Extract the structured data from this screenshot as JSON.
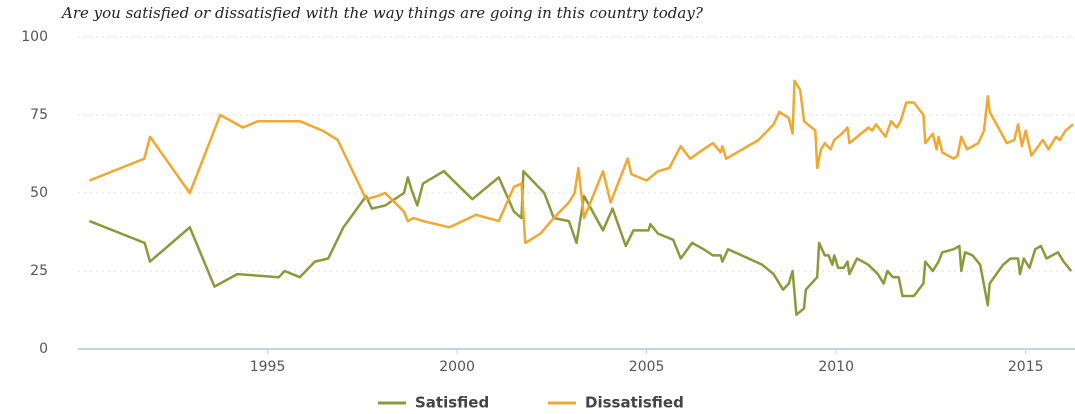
{
  "chart_data": {
    "type": "line",
    "title": "Are you satisfied or dissatisfied with the way things are going in this country today?",
    "xlim": [
      1990,
      2016.3
    ],
    "xticks": [
      1995,
      2000,
      2005,
      2010,
      2015
    ],
    "ylim": [
      0,
      100
    ],
    "yticks": [
      0,
      25,
      50,
      75,
      100
    ],
    "grid": true,
    "legend": "bottom",
    "series": [
      {
        "name": "Satisfied",
        "color": "#8a9a3b",
        "x": [
          1990.3,
          1991.76,
          1991.9,
          1992.95,
          1993.6,
          1994.2,
          1995.3,
          1995.45,
          1995.85,
          1996.25,
          1996.6,
          1997.0,
          1997.6,
          1997.75,
          1998.1,
          1998.6,
          1998.7,
          1998.8,
          1998.95,
          1999.1,
          1999.65,
          2000.4,
          2001.1,
          2001.5,
          2001.7,
          2001.75,
          2002.3,
          2002.55,
          2002.95,
          2003.15,
          2003.35,
          2003.85,
          2004.1,
          2004.45,
          2004.65,
          2005.05,
          2005.1,
          2005.3,
          2005.7,
          2005.9,
          2006.2,
          2006.5,
          2006.75,
          2006.95,
          2007.0,
          2007.15,
          2008.05,
          2008.35,
          2008.6,
          2008.75,
          2008.85,
          2008.95,
          2009.15,
          2009.2,
          2009.5,
          2009.55,
          2009.7,
          2009.8,
          2009.9,
          2009.95,
          2010.05,
          2010.2,
          2010.3,
          2010.35,
          2010.55,
          2010.85,
          2011.1,
          2011.25,
          2011.35,
          2011.5,
          2011.65,
          2011.75,
          2012.05,
          2012.3,
          2012.35,
          2012.55,
          2012.7,
          2012.8,
          2013.1,
          2013.25,
          2013.3,
          2013.4,
          2013.6,
          2013.8,
          2014.0,
          2014.05,
          2014.4,
          2014.6,
          2014.8,
          2014.85,
          2014.95,
          2015.1,
          2015.25,
          2015.4,
          2015.55,
          2015.85,
          2016.0,
          2016.2
        ],
        "values": [
          41,
          34,
          28,
          39,
          20,
          24,
          23,
          25,
          23,
          28,
          29,
          39,
          49,
          45,
          46,
          50,
          55,
          51,
          46,
          53,
          57,
          48,
          55,
          44,
          42,
          57,
          50,
          42,
          41,
          34,
          49,
          38,
          45,
          33,
          38,
          38,
          40,
          37,
          35,
          29,
          34,
          32,
          30,
          30,
          28,
          32,
          27,
          24,
          19,
          21,
          25,
          11,
          13,
          19,
          23,
          34,
          30,
          30,
          27,
          30,
          26,
          26,
          28,
          24,
          29,
          27,
          24,
          21,
          25,
          23,
          23,
          17,
          17,
          21,
          28,
          25,
          28,
          31,
          32,
          33,
          25,
          31,
          30,
          27,
          14,
          21,
          27,
          29,
          29,
          24,
          29,
          26,
          32,
          33,
          29,
          31,
          28,
          25
        ]
      },
      {
        "name": "Dissatisfied",
        "color": "#f0a830",
        "x": [
          1990.3,
          1991.75,
          1991.9,
          1992.95,
          1993.75,
          1994.35,
          1994.75,
          1995.85,
          1996.45,
          1996.85,
          1997.6,
          1997.9,
          1998.1,
          1998.6,
          1998.7,
          1998.85,
          1999.1,
          1999.8,
          2000.5,
          2001.1,
          2001.5,
          2001.7,
          2001.8,
          2002.2,
          2002.55,
          2002.95,
          2003.1,
          2003.2,
          2003.35,
          2003.85,
          2004.05,
          2004.5,
          2004.6,
          2005.0,
          2005.3,
          2005.6,
          2005.9,
          2006.15,
          2006.5,
          2006.75,
          2006.95,
          2007.0,
          2007.1,
          2007.95,
          2008.35,
          2008.5,
          2008.75,
          2008.85,
          2008.9,
          2009.05,
          2009.15,
          2009.45,
          2009.5,
          2009.6,
          2009.7,
          2009.85,
          2009.95,
          2010.15,
          2010.3,
          2010.35,
          2010.85,
          2010.95,
          2011.05,
          2011.3,
          2011.45,
          2011.6,
          2011.7,
          2011.85,
          2012.05,
          2012.3,
          2012.35,
          2012.55,
          2012.65,
          2012.7,
          2012.8,
          2013.1,
          2013.2,
          2013.3,
          2013.45,
          2013.75,
          2013.9,
          2014.0,
          2014.05,
          2014.5,
          2014.7,
          2014.8,
          2014.9,
          2015.0,
          2015.15,
          2015.45,
          2015.6,
          2015.8,
          2015.9,
          2016.05,
          2016.25
        ],
        "values": [
          54,
          61,
          68,
          50,
          75,
          71,
          73,
          73,
          70,
          67,
          48,
          49,
          50,
          44,
          41,
          42,
          41,
          39,
          43,
          41,
          52,
          53,
          34,
          37,
          42,
          47,
          50,
          58,
          42,
          57,
          47,
          61,
          56,
          54,
          57,
          58,
          65,
          61,
          64,
          66,
          63,
          65,
          61,
          67,
          72,
          76,
          74,
          69,
          86,
          83,
          73,
          70,
          58,
          64,
          66,
          64,
          67,
          69,
          71,
          66,
          71,
          70,
          72,
          68,
          73,
          71,
          73,
          79,
          79,
          75,
          66,
          69,
          64,
          68,
          63,
          61,
          62,
          68,
          64,
          66,
          70,
          81,
          76,
          66,
          67,
          72,
          65,
          70,
          62,
          67,
          64,
          68,
          67,
          70,
          72
        ]
      }
    ]
  }
}
